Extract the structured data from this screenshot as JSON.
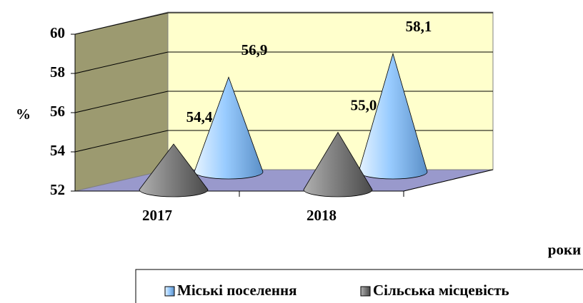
{
  "chart_data": {
    "type": "cone3d",
    "categories": [
      "2017",
      "2018"
    ],
    "series": [
      {
        "name": "Міські поселення",
        "color": "#99ccff",
        "values": [
          56.9,
          58.1
        ],
        "value_labels": [
          "56,9",
          "58,1"
        ]
      },
      {
        "name": "Сільська місцевість",
        "color": "#808080",
        "values": [
          54.4,
          55.0
        ],
        "value_labels": [
          "54,4",
          "55,0"
        ]
      }
    ],
    "y_label": "%",
    "x_label": "роки",
    "ylim": [
      52,
      60
    ],
    "yticks": [
      52,
      54,
      56,
      58,
      60
    ],
    "grid": true
  }
}
